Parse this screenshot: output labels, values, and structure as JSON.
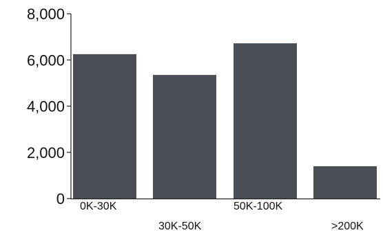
{
  "chart_data": {
    "type": "bar",
    "title": "",
    "xlabel": "",
    "ylabel": "",
    "categories": [
      "0K-30K",
      "30K-50K",
      "50K-100K",
      ">200K"
    ],
    "values": [
      6250,
      5350,
      6720,
      1400
    ],
    "ylim": [
      0,
      8000
    ],
    "yticks": [
      0,
      2000,
      4000,
      6000,
      8000
    ],
    "ytick_labels": [
      "0",
      "2,000",
      "4,000",
      "6,000",
      "8,000"
    ],
    "grid": false,
    "legend": "none",
    "bar_color": "#4a4f57",
    "axis_color": "#222222"
  }
}
